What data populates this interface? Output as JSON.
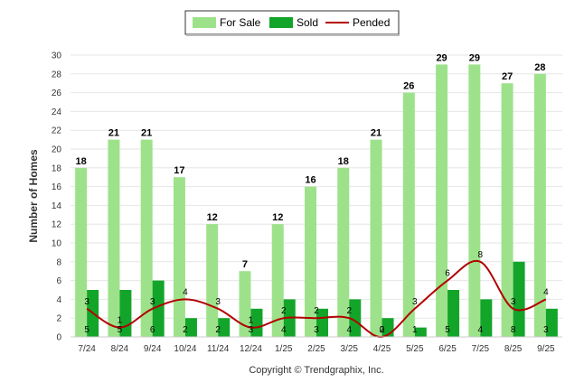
{
  "chart_data": {
    "type": "bar",
    "categories": [
      "7/24",
      "8/24",
      "9/24",
      "10/24",
      "11/24",
      "12/24",
      "1/25",
      "2/25",
      "3/25",
      "4/25",
      "5/25",
      "6/25",
      "7/25",
      "8/25",
      "9/25"
    ],
    "series": [
      {
        "name": "For Sale",
        "type": "bar",
        "color": "#9de28a",
        "values": [
          18,
          21,
          21,
          17,
          12,
          7,
          12,
          16,
          18,
          21,
          26,
          29,
          29,
          27,
          28
        ]
      },
      {
        "name": "Sold",
        "type": "bar",
        "color": "#13a52a",
        "values": [
          5,
          5,
          6,
          2,
          2,
          3,
          4,
          3,
          4,
          2,
          1,
          5,
          4,
          8,
          3
        ]
      },
      {
        "name": "Pended",
        "type": "line",
        "color": "#b30000",
        "values": [
          3,
          1,
          3,
          4,
          3,
          1,
          2,
          2,
          2,
          0,
          3,
          6,
          8,
          3,
          4
        ]
      }
    ],
    "ylabel": "Number of Homes",
    "xlabel": "",
    "ylim": [
      0,
      30
    ],
    "yticks": [
      0,
      2,
      4,
      6,
      8,
      10,
      12,
      14,
      16,
      18,
      20,
      22,
      24,
      26,
      28,
      30
    ],
    "grid": true,
    "legend_position": "top-center"
  },
  "credit": "Copyright © Trendgraphix, Inc."
}
